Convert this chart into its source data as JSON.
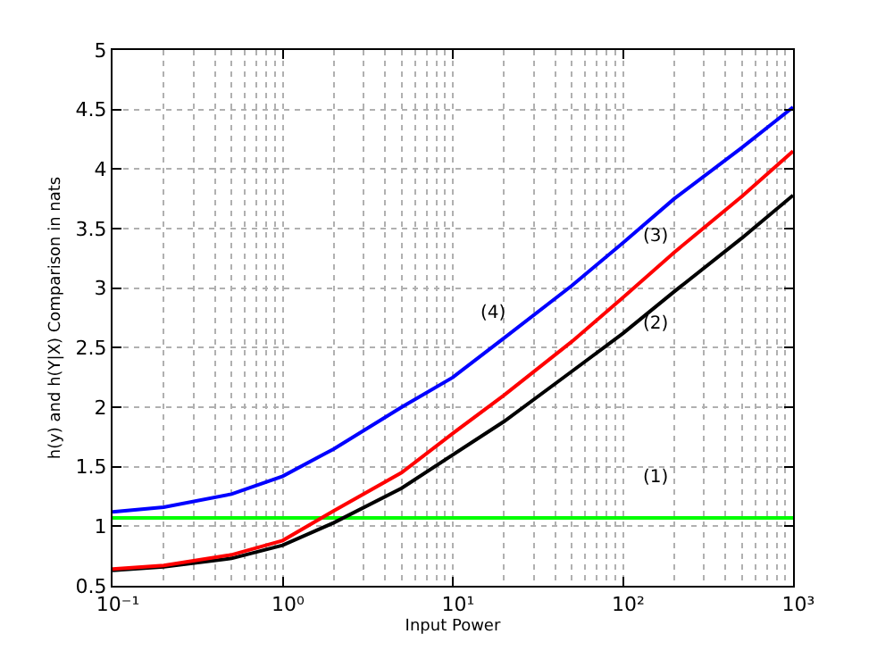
{
  "chart_data": {
    "type": "line",
    "xlabel": "Input Power",
    "ylabel": "h(y) and h(Y|X) Comparison in nats",
    "log": "x",
    "x": [
      0.1,
      0.2,
      0.5,
      1,
      2,
      5,
      10,
      20,
      50,
      100,
      200,
      500,
      1000
    ],
    "series": [
      {
        "color": "#00ff00",
        "values": [
          1.07,
          1.07,
          1.07,
          1.07,
          1.07,
          1.07,
          1.07,
          1.07,
          1.07,
          1.07,
          1.07,
          1.07,
          1.07
        ]
      },
      {
        "color": "#000000",
        "values": [
          0.63,
          0.66,
          0.73,
          0.84,
          1.03,
          1.32,
          1.6,
          1.88,
          2.3,
          2.62,
          2.97,
          3.42,
          3.78
        ]
      },
      {
        "color": "#ff0000",
        "values": [
          0.64,
          0.67,
          0.76,
          0.88,
          1.13,
          1.45,
          1.78,
          2.1,
          2.55,
          2.92,
          3.3,
          3.77,
          4.15
        ]
      },
      {
        "color": "#0000ff",
        "values": [
          1.12,
          1.16,
          1.27,
          1.42,
          1.65,
          2.0,
          2.25,
          2.58,
          3.02,
          3.38,
          3.75,
          4.18,
          4.52
        ]
      }
    ],
    "xlim": [
      0.1,
      1000
    ],
    "xticks": [
      {
        "value": 0.1,
        "label": "10⁻¹"
      },
      {
        "value": 1,
        "label": "10⁰"
      },
      {
        "value": 10,
        "label": "10¹"
      },
      {
        "value": 100,
        "label": "10²"
      },
      {
        "value": 1000,
        "label": "10³"
      }
    ],
    "ylim": [
      0.5,
      5
    ],
    "yticks": [
      0.5,
      1,
      1.5,
      2,
      2.5,
      3,
      3.5,
      4,
      4.5,
      5
    ],
    "grid": true,
    "marker": "none",
    "line_style": "solid",
    "annotations": [
      "(1)",
      "(2)",
      "(3)",
      "(4)"
    ]
  }
}
